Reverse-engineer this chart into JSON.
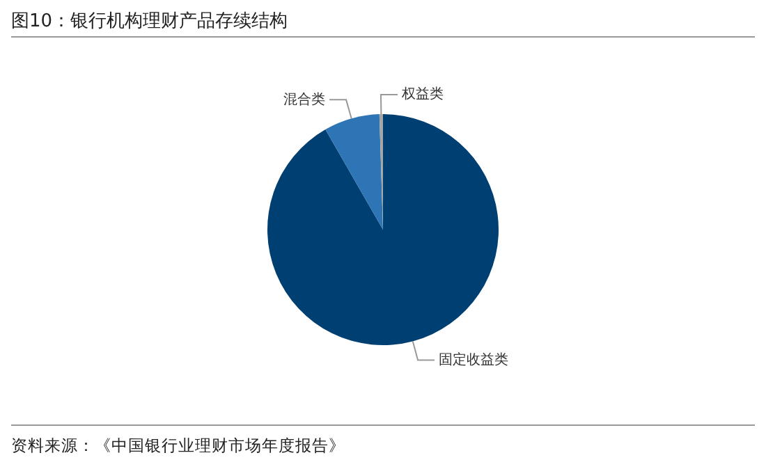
{
  "chart_data": {
    "type": "pie",
    "title": "图10：银行机构理财产品存续结构",
    "categories": [
      "固定收益类",
      "混合类",
      "权益类"
    ],
    "values": [
      91.7,
      7.8,
      0.5
    ],
    "colors": [
      "#003f72",
      "#2e75b6",
      "#a6a6a6"
    ],
    "legend": false,
    "annotations": [
      "资料来源：《中国银行业理财市场年度报告》"
    ]
  }
}
